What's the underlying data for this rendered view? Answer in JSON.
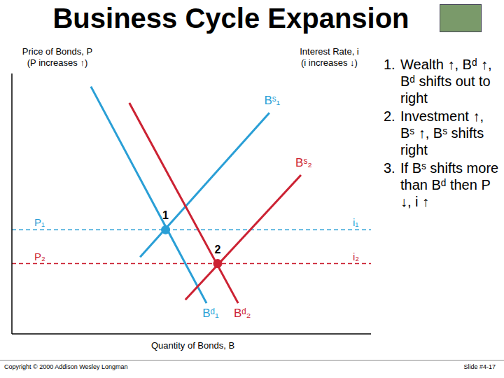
{
  "slide": {
    "title": "Business Cycle Expansion",
    "bullets": [
      {
        "number": "1.",
        "text": "Wealth ↑, Bᵈ ↑, Bᵈ shifts out to right"
      },
      {
        "number": "2.",
        "text": "Investment ↑, Bˢ ↑, Bˢ shifts right"
      },
      {
        "number": "3.",
        "text": "If Bˢ shifts more than Bᵈ then P ↓, i ↑"
      }
    ],
    "footer_left": "Copyright © 2000 Addison Wesley Longman",
    "footer_right": "Slide #4-17"
  },
  "chart_data": {
    "type": "line",
    "x_label": "Quantity of Bonds, B",
    "y_label": [
      "Price of Bonds, P",
      "(P increases ↑)"
    ],
    "y2_label": [
      "Interest Rate, i",
      "(i increases ↓)"
    ],
    "xlim": [
      0,
      100
    ],
    "ylim": [
      0,
      100
    ],
    "tick_labels": false,
    "grid": false,
    "series": [
      {
        "name": "Bˢ₁",
        "color": "#2a9fd6",
        "x": [
          35.7,
          71.7
        ],
        "y": [
          29.5,
          84.9
        ]
      },
      {
        "name": "Bᵈ₁",
        "color": "#2a9fd6",
        "x": [
          22,
          54.2
        ],
        "y": [
          95,
          11.8
        ]
      },
      {
        "name": "Bˢ₂",
        "color": "#cc2233",
        "x": [
          48.3,
          80.5
        ],
        "y": [
          13.1,
          61
        ]
      },
      {
        "name": "Bᵈ₂",
        "color": "#cc2233",
        "x": [
          32.7,
          63
        ],
        "y": [
          88.7,
          11.8
        ]
      }
    ],
    "levels": [
      {
        "y": 40,
        "left_label": "P₁",
        "right_label": "i₁",
        "color": "#2a9fd6",
        "line_style": "dashed"
      },
      {
        "y": 27,
        "left_label": "P₂",
        "right_label": "i₂",
        "color": "#cc2233",
        "line_style": "dashed"
      }
    ],
    "points": [
      {
        "label": "1",
        "x": 42.8,
        "y": 40,
        "color": "#2a9fd6"
      },
      {
        "label": "2",
        "x": 57.3,
        "y": 27,
        "color": "#cc2233"
      }
    ]
  }
}
